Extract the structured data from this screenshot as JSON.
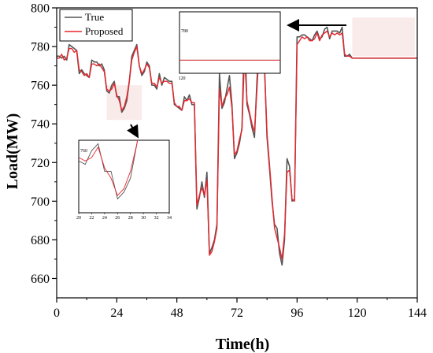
{
  "chart_data": {
    "type": "line",
    "title": "",
    "xlabel": "Time(h)",
    "ylabel": "Load(MW)",
    "xlim": [
      0,
      144
    ],
    "ylim": [
      650,
      800
    ],
    "xticks": [
      0,
      24,
      48,
      72,
      96,
      120,
      144
    ],
    "yticks": [
      660,
      680,
      700,
      720,
      740,
      760,
      780,
      800
    ],
    "legend_position": "top-left",
    "grid": false,
    "colors": {
      "True": "#555555",
      "Proposed": "#e8262d"
    },
    "series": [
      {
        "name": "True",
        "x": [
          0,
          1,
          2,
          3,
          4,
          5,
          6,
          7,
          8,
          9,
          10,
          11,
          12,
          13,
          14,
          15,
          16,
          17,
          18,
          19,
          20,
          21,
          22,
          23,
          24,
          25,
          26,
          27,
          28,
          29,
          30,
          31,
          32,
          33,
          34,
          35,
          36,
          37,
          38,
          39,
          40,
          41,
          42,
          43,
          44,
          45,
          46,
          47,
          48,
          49,
          50,
          51,
          52,
          53,
          54,
          55,
          56,
          57,
          58,
          59,
          60,
          61,
          62,
          63,
          64,
          65,
          66,
          67,
          68,
          69,
          70,
          71,
          72,
          73,
          74,
          75,
          76,
          77,
          78,
          79,
          80,
          81,
          82,
          83,
          84,
          85,
          86,
          87,
          88,
          89,
          90,
          91,
          92,
          93,
          94,
          95,
          96,
          97,
          98,
          99,
          100,
          101,
          102,
          103,
          104,
          105,
          106,
          107,
          108,
          109,
          110,
          111,
          112,
          113,
          114,
          115,
          116,
          117,
          118,
          119,
          120,
          121,
          122,
          123,
          124,
          125,
          126,
          127,
          128,
          129,
          130,
          131,
          132,
          133,
          134,
          135,
          136,
          137,
          138,
          139,
          140,
          141,
          142,
          143,
          144
        ],
        "values": [
          775,
          775,
          774,
          775,
          773,
          781,
          780,
          779,
          778,
          766,
          768,
          766,
          765,
          764,
          773,
          772,
          772,
          770,
          771,
          768,
          757,
          756,
          760,
          762,
          754,
          754,
          746,
          748,
          752,
          762,
          775,
          778,
          781,
          770,
          765,
          767,
          772,
          770,
          760,
          760,
          758,
          766,
          760,
          764,
          763,
          762,
          762,
          750,
          749,
          748,
          747,
          754,
          752,
          755,
          750,
          750,
          696,
          702,
          710,
          702,
          715,
          673,
          676,
          680,
          688,
          766,
          748,
          751,
          758,
          765,
          750,
          722,
          725,
          730,
          738,
          790,
          750,
          745,
          738,
          733,
          763,
          783,
          778,
          770,
          733,
          717,
          700,
          688,
          686,
          673,
          667,
          680,
          722,
          718,
          700,
          701,
          785,
          785,
          786,
          786,
          785,
          784,
          783,
          786,
          788,
          784,
          785,
          789,
          790,
          784,
          788,
          788,
          788,
          787,
          790,
          775,
          775,
          776,
          774,
          774,
          774,
          774,
          774,
          774,
          774,
          774,
          774,
          774,
          774,
          774,
          774,
          774,
          774,
          774,
          774,
          774,
          774,
          774,
          774,
          774,
          774,
          774,
          774,
          774,
          774
        ]
      },
      {
        "name": "Proposed",
        "x": [
          0,
          1,
          2,
          3,
          4,
          5,
          6,
          7,
          8,
          9,
          10,
          11,
          12,
          13,
          14,
          15,
          16,
          17,
          18,
          19,
          20,
          21,
          22,
          23,
          24,
          25,
          26,
          27,
          28,
          29,
          30,
          31,
          32,
          33,
          34,
          35,
          36,
          37,
          38,
          39,
          40,
          41,
          42,
          43,
          44,
          45,
          46,
          47,
          48,
          49,
          50,
          51,
          52,
          53,
          54,
          55,
          56,
          57,
          58,
          59,
          60,
          61,
          62,
          63,
          64,
          65,
          66,
          67,
          68,
          69,
          70,
          71,
          72,
          73,
          74,
          75,
          76,
          77,
          78,
          79,
          80,
          81,
          82,
          83,
          84,
          85,
          86,
          87,
          88,
          89,
          90,
          91,
          92,
          93,
          94,
          95,
          96,
          97,
          98,
          99,
          100,
          101,
          102,
          103,
          104,
          105,
          106,
          107,
          108,
          109,
          110,
          111,
          112,
          113,
          114,
          115,
          116,
          117,
          118,
          119,
          120,
          121,
          122,
          123,
          124,
          125,
          126,
          127,
          128,
          129,
          130,
          131,
          132,
          133,
          134,
          135,
          136,
          137,
          138,
          139,
          140,
          141,
          142,
          143,
          144
        ],
        "values": [
          774,
          774,
          776,
          773,
          774,
          779,
          779,
          777,
          778,
          768,
          767,
          765,
          766,
          764,
          771,
          771,
          770,
          771,
          769,
          767,
          758,
          757,
          758,
          761,
          755,
          752,
          747,
          749,
          754,
          762,
          773,
          777,
          780,
          770,
          766,
          768,
          771,
          769,
          761,
          761,
          759,
          764,
          761,
          762,
          762,
          761,
          761,
          751,
          749,
          749,
          747,
          752,
          752,
          753,
          751,
          751,
          698,
          703,
          707,
          703,
          711,
          672,
          674,
          679,
          686,
          758,
          749,
          753,
          755,
          759,
          748,
          724,
          726,
          732,
          737,
          775,
          752,
          746,
          740,
          736,
          758,
          782,
          775,
          768,
          735,
          719,
          702,
          686,
          681,
          676,
          670,
          683,
          715,
          716,
          701,
          700,
          781,
          783,
          785,
          784,
          785,
          783,
          783,
          784,
          787,
          783,
          786,
          787,
          788,
          785,
          787,
          786,
          787,
          786,
          787,
          776,
          775,
          775,
          774,
          774,
          774,
          774,
          774,
          774,
          774,
          774,
          774,
          774,
          774,
          774,
          774,
          774,
          774,
          774,
          774,
          774,
          774,
          774,
          774,
          774,
          774,
          774,
          774,
          774,
          774
        ]
      }
    ],
    "annotations": [
      {
        "type": "zoom-inset",
        "source_x_range": [
          20,
          34
        ],
        "inset_xticks": [
          20,
          22,
          24,
          26,
          28,
          30,
          32,
          34
        ],
        "inset_ytick_label": "760"
      },
      {
        "type": "zoom-inset",
        "source_x_range": [
          118,
          143
        ],
        "inset_ytick_label": "780",
        "inset_xtick_label": "120"
      }
    ]
  }
}
